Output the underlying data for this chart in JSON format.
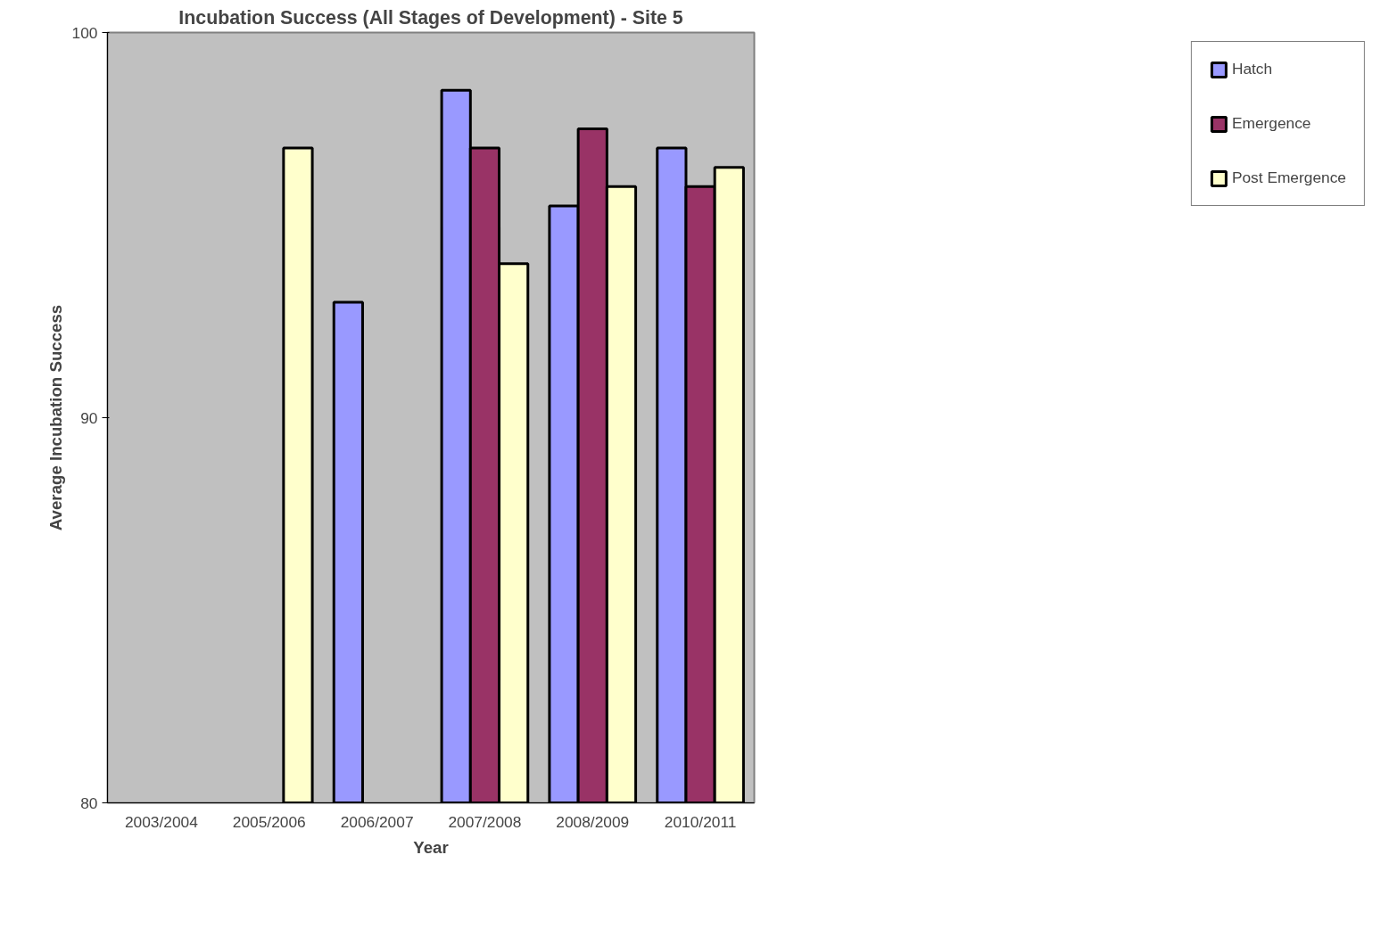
{
  "chart_data": {
    "type": "bar",
    "title": "Incubation Success (All Stages of Development) - Site 5",
    "xlabel": "Year",
    "ylabel": "Average Incubation Success",
    "categories": [
      "2003/2004",
      "2005/2006",
      "2006/2007",
      "2007/2008",
      "2008/2009",
      "2010/2011"
    ],
    "series": [
      {
        "name": "Hatch",
        "color": "#9999ff",
        "values": [
          null,
          null,
          93,
          98.5,
          95.5,
          97
        ]
      },
      {
        "name": "Emergence",
        "color": "#993366",
        "values": [
          null,
          null,
          null,
          97,
          97.5,
          96
        ]
      },
      {
        "name": "Post Emergence",
        "color": "#ffffcc",
        "values": [
          null,
          97,
          null,
          94,
          96,
          96.5
        ]
      }
    ],
    "ylim": [
      80,
      100
    ],
    "yticks": [
      80,
      90,
      100
    ],
    "grid": false,
    "legend": "right"
  }
}
